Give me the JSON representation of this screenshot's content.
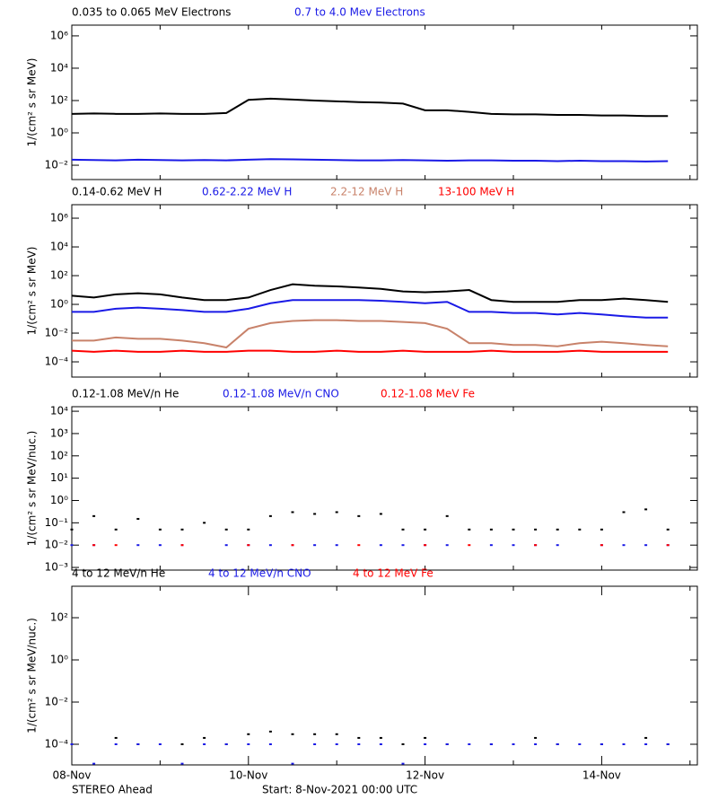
{
  "chart_data": [
    {
      "type": "line",
      "log_y": true,
      "ylabel": "1/(cm² s sr MeV)",
      "x": [
        "2021-11-08T00:00",
        "2021-11-08T06:00",
        "2021-11-08T12:00",
        "2021-11-08T18:00",
        "2021-11-09T00:00",
        "2021-11-09T06:00",
        "2021-11-09T12:00",
        "2021-11-09T18:00",
        "2021-11-10T00:00",
        "2021-11-10T06:00",
        "2021-11-10T12:00",
        "2021-11-10T18:00",
        "2021-11-11T00:00",
        "2021-11-11T06:00",
        "2021-11-11T12:00",
        "2021-11-11T18:00",
        "2021-11-12T00:00",
        "2021-11-12T06:00",
        "2021-11-12T12:00",
        "2021-11-12T18:00",
        "2021-11-13T00:00",
        "2021-11-13T06:00",
        "2021-11-13T12:00",
        "2021-11-13T18:00",
        "2021-11-14T00:00",
        "2021-11-14T06:00",
        "2021-11-14T12:00",
        "2021-11-14T18:00"
      ],
      "xlim": [
        "2021-11-08T00:00",
        "2021-11-15T02:00"
      ],
      "xticks": [
        "2021-11-08T00:00",
        "2021-11-09T00:00",
        "2021-11-10T00:00",
        "2021-11-11T00:00",
        "2021-11-12T00:00",
        "2021-11-13T00:00",
        "2021-11-14T00:00",
        "2021-11-15T00:00"
      ],
      "ylim": [
        0.0013,
        4600000
      ],
      "yticks": [
        {
          "value": 0.01,
          "label": "10⁻²"
        },
        {
          "value": 1,
          "label": "10⁰"
        },
        {
          "value": 100,
          "label": "10²"
        },
        {
          "value": 10000,
          "label": "10⁴"
        },
        {
          "value": 1000000,
          "label": "10⁶"
        }
      ],
      "series": [
        {
          "name": "0.035 to 0.065 MeV Electrons",
          "color": "#000000",
          "values": [
            15,
            16,
            15,
            15,
            16,
            15,
            15,
            17,
            110,
            130,
            115,
            100,
            90,
            80,
            75,
            65,
            25,
            25,
            20,
            15,
            14,
            14,
            13,
            13,
            12,
            12,
            11,
            11
          ]
        },
        {
          "name": "0.7 to 4.0 Mev Electrons",
          "color": "#1a1ae6",
          "values": [
            0.022,
            0.021,
            0.02,
            0.022,
            0.021,
            0.02,
            0.021,
            0.02,
            0.022,
            0.024,
            0.023,
            0.022,
            0.021,
            0.02,
            0.02,
            0.021,
            0.02,
            0.019,
            0.02,
            0.02,
            0.019,
            0.019,
            0.018,
            0.019,
            0.018,
            0.018,
            0.017,
            0.018
          ]
        }
      ]
    },
    {
      "type": "line",
      "log_y": true,
      "ylabel": "1/(cm² s sr MeV)",
      "x": [
        "2021-11-08T00:00",
        "2021-11-08T06:00",
        "2021-11-08T12:00",
        "2021-11-08T18:00",
        "2021-11-09T00:00",
        "2021-11-09T06:00",
        "2021-11-09T12:00",
        "2021-11-09T18:00",
        "2021-11-10T00:00",
        "2021-11-10T06:00",
        "2021-11-10T12:00",
        "2021-11-10T18:00",
        "2021-11-11T00:00",
        "2021-11-11T06:00",
        "2021-11-11T12:00",
        "2021-11-11T18:00",
        "2021-11-12T00:00",
        "2021-11-12T06:00",
        "2021-11-12T12:00",
        "2021-11-12T18:00",
        "2021-11-13T00:00",
        "2021-11-13T06:00",
        "2021-11-13T12:00",
        "2021-11-13T18:00",
        "2021-11-14T00:00",
        "2021-11-14T06:00",
        "2021-11-14T12:00",
        "2021-11-14T18:00"
      ],
      "xlim": [
        "2021-11-08T00:00",
        "2021-11-15T02:00"
      ],
      "xticks": [
        "2021-11-08T00:00",
        "2021-11-09T00:00",
        "2021-11-10T00:00",
        "2021-11-11T00:00",
        "2021-11-12T00:00",
        "2021-11-13T00:00",
        "2021-11-14T00:00",
        "2021-11-15T00:00"
      ],
      "ylim": [
        8.7e-06,
        8700000
      ],
      "yticks": [
        {
          "value": 0.0001,
          "label": "10⁻⁴"
        },
        {
          "value": 0.01,
          "label": "10⁻²"
        },
        {
          "value": 1,
          "label": "10⁰"
        },
        {
          "value": 100,
          "label": "10²"
        },
        {
          "value": 10000,
          "label": "10⁴"
        },
        {
          "value": 1000000,
          "label": "10⁶"
        }
      ],
      "series": [
        {
          "name": "0.14-0.62 MeV H",
          "color": "#000000",
          "values": [
            4,
            3,
            5,
            6,
            5,
            3,
            2,
            2,
            3,
            10,
            25,
            20,
            18,
            15,
            12,
            8,
            7,
            8,
            10,
            2,
            1.5,
            1.5,
            1.5,
            2,
            2,
            2.5,
            2,
            1.5
          ]
        },
        {
          "name": "0.62-2.22 MeV H",
          "color": "#1a1ae6",
          "values": [
            0.3,
            0.3,
            0.5,
            0.6,
            0.5,
            0.4,
            0.3,
            0.3,
            0.5,
            1.2,
            2,
            2,
            2,
            2,
            1.8,
            1.5,
            1.2,
            1.5,
            0.3,
            0.3,
            0.25,
            0.25,
            0.2,
            0.25,
            0.2,
            0.15,
            0.12,
            0.12
          ]
        },
        {
          "name": "2.2-12 MeV H",
          "color": "#c8826a",
          "values": [
            0.003,
            0.003,
            0.005,
            0.004,
            0.004,
            0.003,
            0.002,
            0.001,
            0.02,
            0.05,
            0.07,
            0.08,
            0.08,
            0.07,
            0.07,
            0.06,
            0.05,
            0.02,
            0.002,
            0.002,
            0.0015,
            0.0015,
            0.0012,
            0.002,
            0.0025,
            0.002,
            0.0015,
            0.0012
          ]
        },
        {
          "name": "13-100 MeV H",
          "color": "#ff0000",
          "values": [
            0.0006,
            0.0005,
            0.0006,
            0.0005,
            0.0005,
            0.0006,
            0.0005,
            0.0005,
            0.0006,
            0.0006,
            0.0005,
            0.0005,
            0.0006,
            0.0005,
            0.0005,
            0.0006,
            0.0005,
            0.0005,
            0.0005,
            0.0006,
            0.0005,
            0.0005,
            0.0005,
            0.0006,
            0.0005,
            0.0005,
            0.0005,
            0.0005
          ]
        }
      ]
    },
    {
      "type": "scatter",
      "log_y": true,
      "ylabel": "1/(cm² s sr MeV/nuc.)",
      "x": [
        "2021-11-08T00:00",
        "2021-11-08T06:00",
        "2021-11-08T12:00",
        "2021-11-08T18:00",
        "2021-11-09T00:00",
        "2021-11-09T06:00",
        "2021-11-09T12:00",
        "2021-11-09T18:00",
        "2021-11-10T00:00",
        "2021-11-10T06:00",
        "2021-11-10T12:00",
        "2021-11-10T18:00",
        "2021-11-11T00:00",
        "2021-11-11T06:00",
        "2021-11-11T12:00",
        "2021-11-11T18:00",
        "2021-11-12T00:00",
        "2021-11-12T06:00",
        "2021-11-12T12:00",
        "2021-11-12T18:00",
        "2021-11-13T00:00",
        "2021-11-13T06:00",
        "2021-11-13T12:00",
        "2021-11-13T18:00",
        "2021-11-14T00:00",
        "2021-11-14T06:00",
        "2021-11-14T12:00",
        "2021-11-14T18:00"
      ],
      "xlim": [
        "2021-11-08T00:00",
        "2021-11-15T02:00"
      ],
      "xticks": [
        "2021-11-08T00:00",
        "2021-11-09T00:00",
        "2021-11-10T00:00",
        "2021-11-11T00:00",
        "2021-11-12T00:00",
        "2021-11-13T00:00",
        "2021-11-14T00:00",
        "2021-11-15T00:00"
      ],
      "ylim": [
        0.00076,
        16000
      ],
      "yticks": [
        {
          "value": 0.001,
          "label": "10⁻³"
        },
        {
          "value": 0.01,
          "label": "10⁻²"
        },
        {
          "value": 0.1,
          "label": "10⁻¹"
        },
        {
          "value": 1,
          "label": "10⁰"
        },
        {
          "value": 10,
          "label": "10¹"
        },
        {
          "value": 100,
          "label": "10²"
        },
        {
          "value": 1000,
          "label": "10³"
        },
        {
          "value": 10000,
          "label": "10⁴"
        }
      ],
      "series": [
        {
          "name": "0.12-1.08 MeV/n He",
          "color": "#000000",
          "values": [
            0.05,
            0.2,
            0.05,
            0.15,
            0.05,
            0.05,
            0.1,
            0.05,
            0.05,
            0.2,
            0.3,
            0.25,
            0.3,
            0.2,
            0.25,
            0.05,
            0.05,
            0.2,
            0.05,
            0.05,
            0.05,
            0.05,
            0.05,
            0.05,
            0.05,
            0.3,
            0.4,
            0.05
          ]
        },
        {
          "name": "0.12-1.08 MeV/n CNO",
          "color": "#1a1ae6",
          "values": [
            0.01,
            0.01,
            null,
            0.01,
            0.01,
            0.01,
            null,
            0.01,
            0.01,
            0.01,
            0.01,
            0.01,
            0.01,
            null,
            0.01,
            0.01,
            0.01,
            0.01,
            null,
            0.01,
            0.01,
            0.01,
            0.01,
            null,
            0.01,
            0.01,
            0.01,
            0.01
          ]
        },
        {
          "name": "0.12-1.08 MeV Fe",
          "color": "#ff0000",
          "values": [
            null,
            0.01,
            0.01,
            null,
            null,
            0.01,
            null,
            null,
            0.01,
            null,
            0.01,
            null,
            null,
            0.01,
            null,
            null,
            0.01,
            null,
            0.01,
            null,
            null,
            0.01,
            null,
            null,
            0.01,
            null,
            null,
            0.01
          ]
        }
      ]
    },
    {
      "type": "scatter",
      "log_y": true,
      "ylabel": "1/(cm² s sr MeV/nuc.)",
      "x": [
        "2021-11-08T00:00",
        "2021-11-08T06:00",
        "2021-11-08T12:00",
        "2021-11-08T18:00",
        "2021-11-09T00:00",
        "2021-11-09T06:00",
        "2021-11-09T12:00",
        "2021-11-09T18:00",
        "2021-11-10T00:00",
        "2021-11-10T06:00",
        "2021-11-10T12:00",
        "2021-11-10T18:00",
        "2021-11-11T00:00",
        "2021-11-11T06:00",
        "2021-11-11T12:00",
        "2021-11-11T18:00",
        "2021-11-12T00:00",
        "2021-11-12T06:00",
        "2021-11-12T12:00",
        "2021-11-12T18:00",
        "2021-11-13T00:00",
        "2021-11-13T06:00",
        "2021-11-13T12:00",
        "2021-11-13T18:00",
        "2021-11-14T00:00",
        "2021-11-14T06:00",
        "2021-11-14T12:00",
        "2021-11-14T18:00"
      ],
      "xlim": [
        "2021-11-08T00:00",
        "2021-11-15T02:00"
      ],
      "xticks": [
        {
          "value": "2021-11-08T00:00",
          "label": "08-Nov"
        },
        "2021-11-09T00:00",
        {
          "value": "2021-11-10T00:00",
          "label": "10-Nov"
        },
        "2021-11-11T00:00",
        {
          "value": "2021-11-12T00:00",
          "label": "12-Nov"
        },
        "2021-11-13T00:00",
        {
          "value": "2021-11-14T00:00",
          "label": "14-Nov"
        },
        "2021-11-15T00:00"
      ],
      "ylim": [
        1.05e-05,
        3100
      ],
      "yticks": [
        {
          "value": 0.0001,
          "label": "10⁻⁴"
        },
        {
          "value": 0.01,
          "label": "10⁻²"
        },
        {
          "value": 1,
          "label": "10⁰"
        },
        {
          "value": 100,
          "label": "10²"
        }
      ],
      "series": [
        {
          "name": "4 to 12 MeV/n He",
          "color": "#000000",
          "values": [
            0.0001,
            null,
            0.0002,
            0.0001,
            null,
            0.0001,
            0.0002,
            0.0001,
            0.0003,
            0.0004,
            0.0003,
            0.0003,
            0.0003,
            0.0002,
            0.0002,
            0.0001,
            0.0002,
            0.0001,
            null,
            0.0001,
            0.0001,
            0.0002,
            0.0001,
            null,
            0.0001,
            0.0001,
            0.0002,
            0.0001
          ]
        },
        {
          "name": "4 to 12 MeV/n CNO",
          "color": "#1a1ae6",
          "values": [
            0.0001,
            1.2e-05,
            0.0001,
            0.0001,
            0.0001,
            1.2e-05,
            0.0001,
            0.0001,
            0.0001,
            0.0001,
            1.2e-05,
            0.0001,
            0.0001,
            0.0001,
            0.0001,
            1.2e-05,
            0.0001,
            0.0001,
            0.0001,
            0.0001,
            0.0001,
            0.0001,
            0.0001,
            0.0001,
            0.0001,
            0.0001,
            0.0001,
            0.0001
          ]
        },
        {
          "name": "4 to 12 MeV Fe",
          "color": "#ff0000",
          "values": [
            null,
            null,
            null,
            null,
            null,
            null,
            null,
            null,
            null,
            null,
            null,
            null,
            null,
            null,
            null,
            null,
            null,
            null,
            null,
            null,
            null,
            null,
            null,
            null,
            null,
            null,
            null,
            null
          ]
        }
      ]
    }
  ],
  "footer": {
    "left": "STEREO Ahead",
    "center": "Start:  8-Nov-2021 00:00 UTC"
  }
}
